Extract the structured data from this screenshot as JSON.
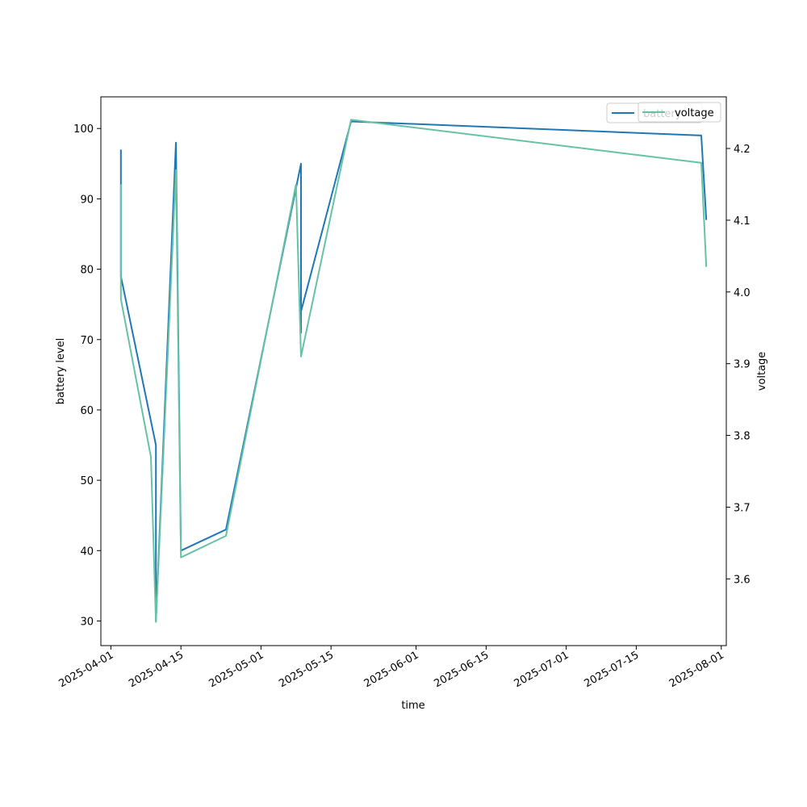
{
  "chart_data": {
    "type": "line",
    "title": "",
    "xlabel": "time",
    "ylabel_left": "battery level",
    "ylabel_right": "voltage",
    "x_ticks": [
      "2025-04-01",
      "2025-04-15",
      "2025-05-01",
      "2025-05-15",
      "2025-06-01",
      "2025-06-15",
      "2025-07-01",
      "2025-07-15",
      "2025-08-01"
    ],
    "y_left_ticks": [
      30,
      40,
      50,
      60,
      70,
      80,
      90,
      100
    ],
    "y_right_ticks": [
      "3.6",
      "3.7",
      "3.8",
      "3.9",
      "4.0",
      "4.1",
      "4.2"
    ],
    "xlim": [
      "2025-03-30",
      "2025-08-02"
    ],
    "ylim_left": [
      26.5,
      104.5
    ],
    "ylim_right": [
      3.507,
      4.272
    ],
    "legend_position": "top-right",
    "series": [
      {
        "name": "battery",
        "axis": "left",
        "color": "#1f77b4",
        "points": [
          [
            "2025-04-03",
            97
          ],
          [
            "2025-04-03",
            79
          ],
          [
            "2025-04-10",
            55
          ],
          [
            "2025-04-10",
            30
          ],
          [
            "2025-04-14",
            98
          ],
          [
            "2025-04-15",
            40
          ],
          [
            "2025-04-24",
            43
          ],
          [
            "2025-05-09",
            95
          ],
          [
            "2025-05-09",
            71
          ],
          [
            "2025-05-09",
            74
          ],
          [
            "2025-05-19",
            101
          ],
          [
            "2025-07-28",
            99
          ],
          [
            "2025-07-29",
            87
          ]
        ]
      },
      {
        "name": "voltage",
        "axis": "right",
        "color": "#66c2a5",
        "points": [
          [
            "2025-04-03",
            4.15
          ],
          [
            "2025-04-03",
            3.99
          ],
          [
            "2025-04-09",
            3.77
          ],
          [
            "2025-04-10",
            3.54
          ],
          [
            "2025-04-14",
            4.17
          ],
          [
            "2025-04-15",
            3.63
          ],
          [
            "2025-04-24",
            3.66
          ],
          [
            "2025-05-08",
            4.15
          ],
          [
            "2025-05-09",
            3.91
          ],
          [
            "2025-05-19",
            4.24
          ],
          [
            "2025-07-28",
            4.18
          ],
          [
            "2025-07-29",
            4.035
          ]
        ]
      }
    ]
  }
}
